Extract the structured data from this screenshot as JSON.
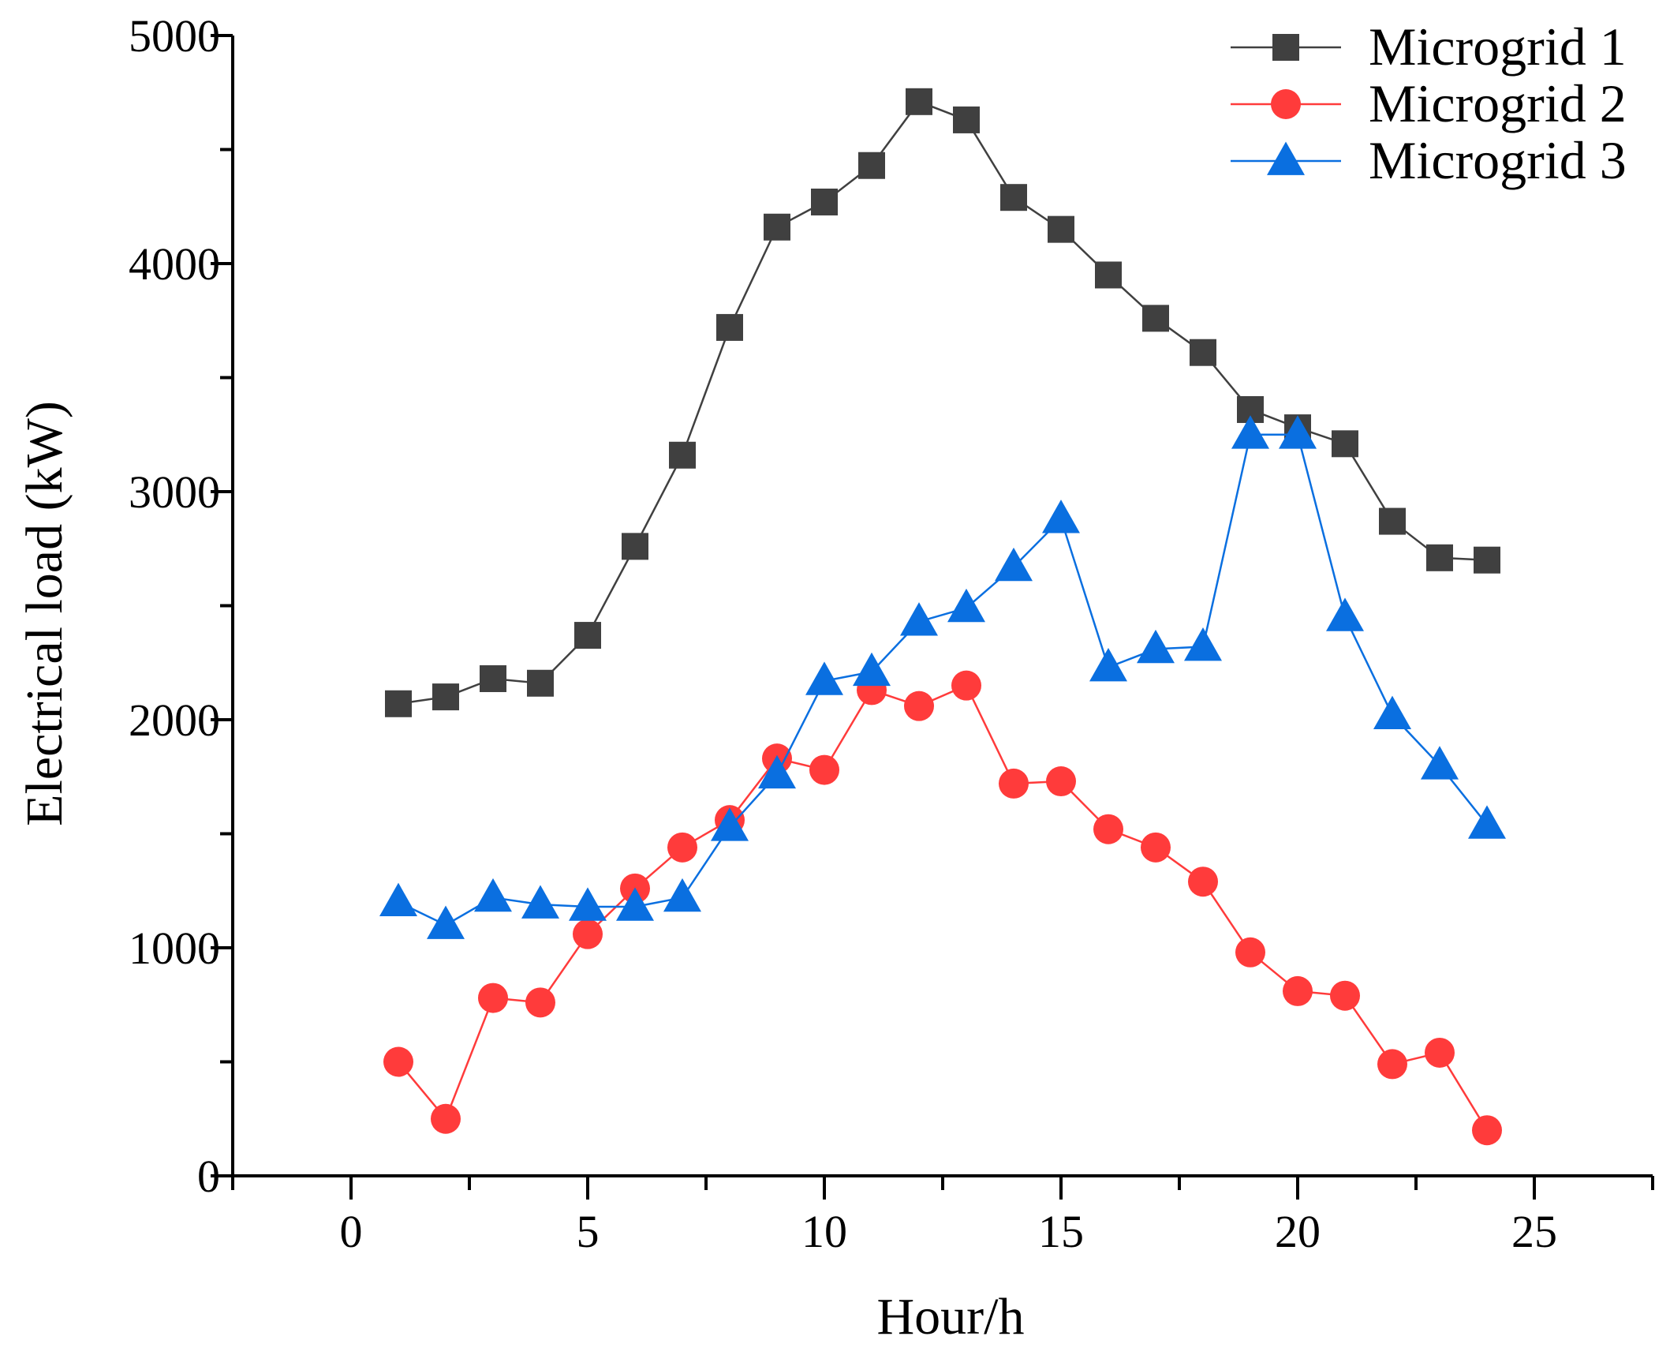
{
  "chart_data": {
    "type": "line",
    "xlabel": "Hour/h",
    "ylabel": "Electrical load (kW)",
    "xlim": [
      -2.5,
      27.5
    ],
    "ylim": [
      0,
      5000
    ],
    "xticks": [
      0,
      5,
      10,
      15,
      20,
      25
    ],
    "yticks": [
      0,
      1000,
      2000,
      3000,
      4000,
      5000
    ],
    "grid": false,
    "legend_position": "top-right",
    "x": [
      1,
      2,
      3,
      4,
      5,
      6,
      7,
      8,
      9,
      10,
      11,
      12,
      13,
      14,
      15,
      16,
      17,
      18,
      19,
      20,
      21,
      22,
      23,
      24
    ],
    "series": [
      {
        "name": "Microgrid 1",
        "color": "#404040",
        "marker": "square",
        "values": [
          2070,
          2100,
          2180,
          2160,
          2370,
          2760,
          3160,
          3720,
          4160,
          4270,
          4430,
          4710,
          4630,
          4290,
          4150,
          3950,
          3760,
          3610,
          3360,
          3280,
          3210,
          2870,
          2710,
          2700
        ]
      },
      {
        "name": "Microgrid 2",
        "color": "#ff3b3b",
        "marker": "circle",
        "values": [
          500,
          250,
          780,
          760,
          1060,
          1260,
          1440,
          1560,
          1830,
          1780,
          2130,
          2060,
          2150,
          1720,
          1730,
          1520,
          1440,
          1290,
          980,
          810,
          790,
          490,
          540,
          200
        ]
      },
      {
        "name": "Microgrid 3",
        "color": "#0a6fe0",
        "marker": "triangle",
        "values": [
          1200,
          1100,
          1220,
          1190,
          1180,
          1180,
          1220,
          1530,
          1760,
          2170,
          2210,
          2430,
          2490,
          2670,
          2880,
          2230,
          2310,
          2320,
          3250,
          3250,
          2450,
          2020,
          1800,
          1540
        ]
      }
    ]
  }
}
